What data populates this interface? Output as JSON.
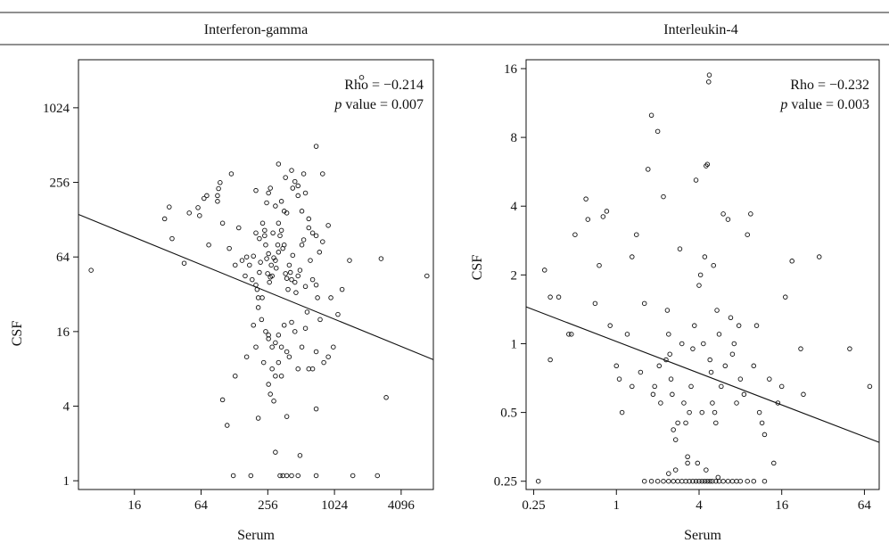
{
  "chart_data": [
    {
      "type": "scatter",
      "title": "Interferon-gamma",
      "xlabel": "Serum",
      "ylabel": "CSF",
      "x_scale": "log2",
      "y_scale": "log2",
      "xlim": [
        5,
        8000
      ],
      "ylim": [
        0.85,
        2500
      ],
      "x_ticks": [
        16,
        64,
        256,
        1024,
        4096
      ],
      "x_tick_labels": [
        "16",
        "64",
        "256",
        "1024",
        "4096"
      ],
      "y_ticks": [
        1,
        4,
        16,
        64,
        256,
        1024
      ],
      "y_tick_labels": [
        "1",
        "4",
        "16",
        "64",
        "256",
        "1024"
      ],
      "grid": false,
      "annotation": {
        "rho": "Rho = −0.214",
        "p_italic": "p",
        "p_rest": " value = 0.007"
      },
      "fit_line": {
        "x": [
          5,
          8000
        ],
        "y": [
          141,
          9.5
        ]
      },
      "points": [
        [
          1800,
          1800
        ],
        [
          6.5,
          50
        ],
        [
          30,
          130
        ],
        [
          33,
          162
        ],
        [
          35,
          90
        ],
        [
          45,
          57
        ],
        [
          50,
          145
        ],
        [
          60,
          160
        ],
        [
          62,
          138
        ],
        [
          68,
          190
        ],
        [
          72,
          200
        ],
        [
          75,
          80
        ],
        [
          90,
          180
        ],
        [
          90,
          200
        ],
        [
          92,
          228
        ],
        [
          95,
          255
        ],
        [
          100,
          120
        ],
        [
          115,
          75
        ],
        [
          120,
          300
        ],
        [
          130,
          55
        ],
        [
          140,
          110
        ],
        [
          150,
          60
        ],
        [
          160,
          45
        ],
        [
          165,
          64
        ],
        [
          175,
          55
        ],
        [
          185,
          42
        ],
        [
          190,
          65
        ],
        [
          200,
          38
        ],
        [
          205,
          35
        ],
        [
          210,
          30
        ],
        [
          215,
          48
        ],
        [
          220,
          58
        ],
        [
          228,
          30
        ],
        [
          230,
          120
        ],
        [
          240,
          105
        ],
        [
          245,
          80
        ],
        [
          250,
          62
        ],
        [
          255,
          47
        ],
        [
          260,
          68
        ],
        [
          265,
          40
        ],
        [
          270,
          44
        ],
        [
          275,
          55
        ],
        [
          280,
          45
        ],
        [
          285,
          100
        ],
        [
          290,
          63
        ],
        [
          300,
          60
        ],
        [
          305,
          52
        ],
        [
          315,
          80
        ],
        [
          320,
          70
        ],
        [
          330,
          95
        ],
        [
          340,
          105
        ],
        [
          350,
          75
        ],
        [
          360,
          80
        ],
        [
          370,
          47
        ],
        [
          380,
          43
        ],
        [
          390,
          35
        ],
        [
          400,
          55
        ],
        [
          410,
          48
        ],
        [
          420,
          42
        ],
        [
          430,
          66
        ],
        [
          450,
          40
        ],
        [
          460,
          33
        ],
        [
          480,
          45
        ],
        [
          500,
          50
        ],
        [
          520,
          80
        ],
        [
          540,
          88
        ],
        [
          560,
          37
        ],
        [
          580,
          23
        ],
        [
          600,
          130
        ],
        [
          620,
          60
        ],
        [
          650,
          42
        ],
        [
          700,
          38
        ],
        [
          720,
          30
        ],
        [
          200,
          220
        ],
        [
          250,
          175
        ],
        [
          260,
          210
        ],
        [
          270,
          230
        ],
        [
          300,
          165
        ],
        [
          320,
          120
        ],
        [
          340,
          180
        ],
        [
          360,
          150
        ],
        [
          380,
          145
        ],
        [
          420,
          320
        ],
        [
          450,
          260
        ],
        [
          480,
          200
        ],
        [
          520,
          150
        ],
        [
          600,
          110
        ],
        [
          650,
          100
        ],
        [
          700,
          95
        ],
        [
          750,
          70
        ],
        [
          800,
          85
        ],
        [
          900,
          115
        ],
        [
          320,
          360
        ],
        [
          370,
          280
        ],
        [
          430,
          230
        ],
        [
          480,
          240
        ],
        [
          540,
          300
        ],
        [
          560,
          210
        ],
        [
          700,
          500
        ],
        [
          800,
          300
        ],
        [
          200,
          100
        ],
        [
          215,
          90
        ],
        [
          240,
          95
        ],
        [
          190,
          18
        ],
        [
          210,
          25
        ],
        [
          225,
          20
        ],
        [
          245,
          16
        ],
        [
          260,
          14
        ],
        [
          280,
          12
        ],
        [
          300,
          13
        ],
        [
          320,
          15
        ],
        [
          340,
          12
        ],
        [
          360,
          18
        ],
        [
          380,
          11
        ],
        [
          400,
          10
        ],
        [
          420,
          19
        ],
        [
          450,
          16
        ],
        [
          480,
          8
        ],
        [
          520,
          12
        ],
        [
          560,
          17
        ],
        [
          600,
          8
        ],
        [
          650,
          8
        ],
        [
          700,
          11
        ],
        [
          760,
          20
        ],
        [
          820,
          9
        ],
        [
          900,
          10
        ],
        [
          1000,
          12
        ],
        [
          1100,
          22
        ],
        [
          1200,
          35
        ],
        [
          950,
          30
        ],
        [
          1400,
          60
        ],
        [
          2700,
          62
        ],
        [
          7000,
          45
        ],
        [
          130,
          7
        ],
        [
          165,
          10
        ],
        [
          200,
          12
        ],
        [
          235,
          9
        ],
        [
          260,
          15
        ],
        [
          280,
          8
        ],
        [
          300,
          7
        ],
        [
          320,
          9
        ],
        [
          340,
          7
        ],
        [
          260,
          6
        ],
        [
          270,
          5
        ],
        [
          290,
          4.4
        ],
        [
          100,
          4.5
        ],
        [
          110,
          2.8
        ],
        [
          210,
          3.2
        ],
        [
          300,
          1.7
        ],
        [
          380,
          3.3
        ],
        [
          500,
          1.6
        ],
        [
          700,
          3.8
        ],
        [
          3000,
          4.7
        ],
        [
          125,
          1.1
        ],
        [
          180,
          1.1
        ],
        [
          330,
          1.1
        ],
        [
          350,
          1.1
        ],
        [
          380,
          1.1
        ],
        [
          420,
          1.1
        ],
        [
          480,
          1.1
        ],
        [
          700,
          1.1
        ],
        [
          1500,
          1.1
        ],
        [
          2500,
          1.1
        ]
      ]
    },
    {
      "type": "scatter",
      "title": "Interleukin-4",
      "xlabel": "Serum",
      "ylabel": "CSF",
      "x_scale": "log2",
      "y_scale": "log2",
      "xlim": [
        0.22,
        82
      ],
      "ylim": [
        0.23,
        17.5
      ],
      "x_ticks": [
        0.25,
        1,
        4,
        16,
        64
      ],
      "x_tick_labels": [
        "0.25",
        "1",
        "4",
        "16",
        "64"
      ],
      "y_ticks": [
        0.25,
        0.5,
        1,
        2,
        4,
        8,
        16
      ],
      "y_tick_labels": [
        "0.25",
        "0.5",
        "1",
        "2",
        "4",
        "8",
        "16"
      ],
      "grid": false,
      "annotation": {
        "rho": "Rho = −0.232",
        "p_italic": "p",
        "p_rest": " value = 0.003"
      },
      "fit_line": {
        "x": [
          0.22,
          82
        ],
        "y": [
          1.45,
          0.37
        ]
      },
      "points": [
        [
          0.27,
          0.25
        ],
        [
          0.3,
          2.1
        ],
        [
          0.33,
          0.85
        ],
        [
          0.33,
          1.6
        ],
        [
          0.38,
          1.6
        ],
        [
          0.45,
          1.1
        ],
        [
          0.47,
          1.1
        ],
        [
          0.5,
          3
        ],
        [
          0.6,
          4.3
        ],
        [
          0.62,
          3.5
        ],
        [
          0.7,
          1.5
        ],
        [
          0.75,
          2.2
        ],
        [
          0.8,
          3.6
        ],
        [
          0.85,
          3.8
        ],
        [
          0.9,
          1.2
        ],
        [
          1.0,
          0.8
        ],
        [
          1.05,
          0.7
        ],
        [
          1.1,
          0.5
        ],
        [
          1.2,
          1.1
        ],
        [
          1.3,
          0.65
        ],
        [
          1.3,
          2.4
        ],
        [
          1.4,
          3
        ],
        [
          1.5,
          0.75
        ],
        [
          1.6,
          1.5
        ],
        [
          1.7,
          5.8
        ],
        [
          1.8,
          10
        ],
        [
          1.85,
          0.6
        ],
        [
          1.9,
          0.65
        ],
        [
          2.0,
          8.5
        ],
        [
          2.05,
          0.8
        ],
        [
          2.1,
          0.55
        ],
        [
          2.2,
          4.4
        ],
        [
          2.3,
          0.85
        ],
        [
          2.35,
          1.4
        ],
        [
          2.4,
          1.1
        ],
        [
          2.45,
          0.9
        ],
        [
          2.5,
          0.7
        ],
        [
          2.55,
          0.6
        ],
        [
          2.6,
          0.42
        ],
        [
          2.7,
          0.38
        ],
        [
          2.8,
          0.45
        ],
        [
          2.9,
          2.6
        ],
        [
          3.0,
          1.0
        ],
        [
          3.1,
          0.55
        ],
        [
          3.2,
          0.45
        ],
        [
          3.3,
          0.3
        ],
        [
          3.4,
          0.5
        ],
        [
          3.5,
          0.65
        ],
        [
          3.6,
          0.95
        ],
        [
          3.7,
          1.2
        ],
        [
          3.8,
          5.2
        ],
        [
          3.9,
          0.3
        ],
        [
          4.0,
          1.8
        ],
        [
          4.1,
          2.0
        ],
        [
          4.2,
          0.5
        ],
        [
          4.3,
          1.0
        ],
        [
          4.4,
          2.4
        ],
        [
          4.5,
          6.0
        ],
        [
          4.6,
          6.1
        ],
        [
          4.7,
          14
        ],
        [
          4.75,
          15
        ],
        [
          4.8,
          0.85
        ],
        [
          4.9,
          0.75
        ],
        [
          5.0,
          0.55
        ],
        [
          5.1,
          2.2
        ],
        [
          5.2,
          0.5
        ],
        [
          5.3,
          0.45
        ],
        [
          5.4,
          1.4
        ],
        [
          5.6,
          1.1
        ],
        [
          5.8,
          0.65
        ],
        [
          6.0,
          3.7
        ],
        [
          6.2,
          0.8
        ],
        [
          6.5,
          3.5
        ],
        [
          6.8,
          1.3
        ],
        [
          7.0,
          0.9
        ],
        [
          7.2,
          1.0
        ],
        [
          7.5,
          0.55
        ],
        [
          7.8,
          1.2
        ],
        [
          8.0,
          0.7
        ],
        [
          8.5,
          0.6
        ],
        [
          9.0,
          3.0
        ],
        [
          9.5,
          3.7
        ],
        [
          10,
          0.8
        ],
        [
          10.5,
          1.2
        ],
        [
          11,
          0.5
        ],
        [
          11.5,
          0.45
        ],
        [
          12,
          0.4
        ],
        [
          13,
          0.7
        ],
        [
          14,
          0.3
        ],
        [
          15,
          0.55
        ],
        [
          16,
          0.65
        ],
        [
          17,
          1.6
        ],
        [
          19,
          2.3
        ],
        [
          22,
          0.95
        ],
        [
          23,
          0.6
        ],
        [
          30,
          2.4
        ],
        [
          50,
          0.95
        ],
        [
          70,
          0.65
        ],
        [
          1.6,
          0.25
        ],
        [
          1.8,
          0.25
        ],
        [
          2.0,
          0.25
        ],
        [
          2.2,
          0.25
        ],
        [
          2.4,
          0.25
        ],
        [
          2.6,
          0.25
        ],
        [
          2.8,
          0.25
        ],
        [
          3.0,
          0.25
        ],
        [
          3.2,
          0.25
        ],
        [
          3.4,
          0.25
        ],
        [
          3.6,
          0.25
        ],
        [
          3.8,
          0.25
        ],
        [
          4.0,
          0.25
        ],
        [
          4.2,
          0.25
        ],
        [
          4.4,
          0.25
        ],
        [
          4.6,
          0.25
        ],
        [
          4.8,
          0.25
        ],
        [
          5.0,
          0.25
        ],
        [
          5.3,
          0.25
        ],
        [
          5.6,
          0.25
        ],
        [
          6.0,
          0.25
        ],
        [
          6.5,
          0.25
        ],
        [
          7.0,
          0.25
        ],
        [
          7.5,
          0.25
        ],
        [
          8.0,
          0.25
        ],
        [
          9.0,
          0.25
        ],
        [
          10,
          0.25
        ],
        [
          12,
          0.25
        ],
        [
          2.4,
          0.27
        ],
        [
          2.7,
          0.28
        ],
        [
          3.3,
          0.32
        ],
        [
          4.5,
          0.28
        ],
        [
          5.5,
          0.26
        ]
      ]
    }
  ]
}
